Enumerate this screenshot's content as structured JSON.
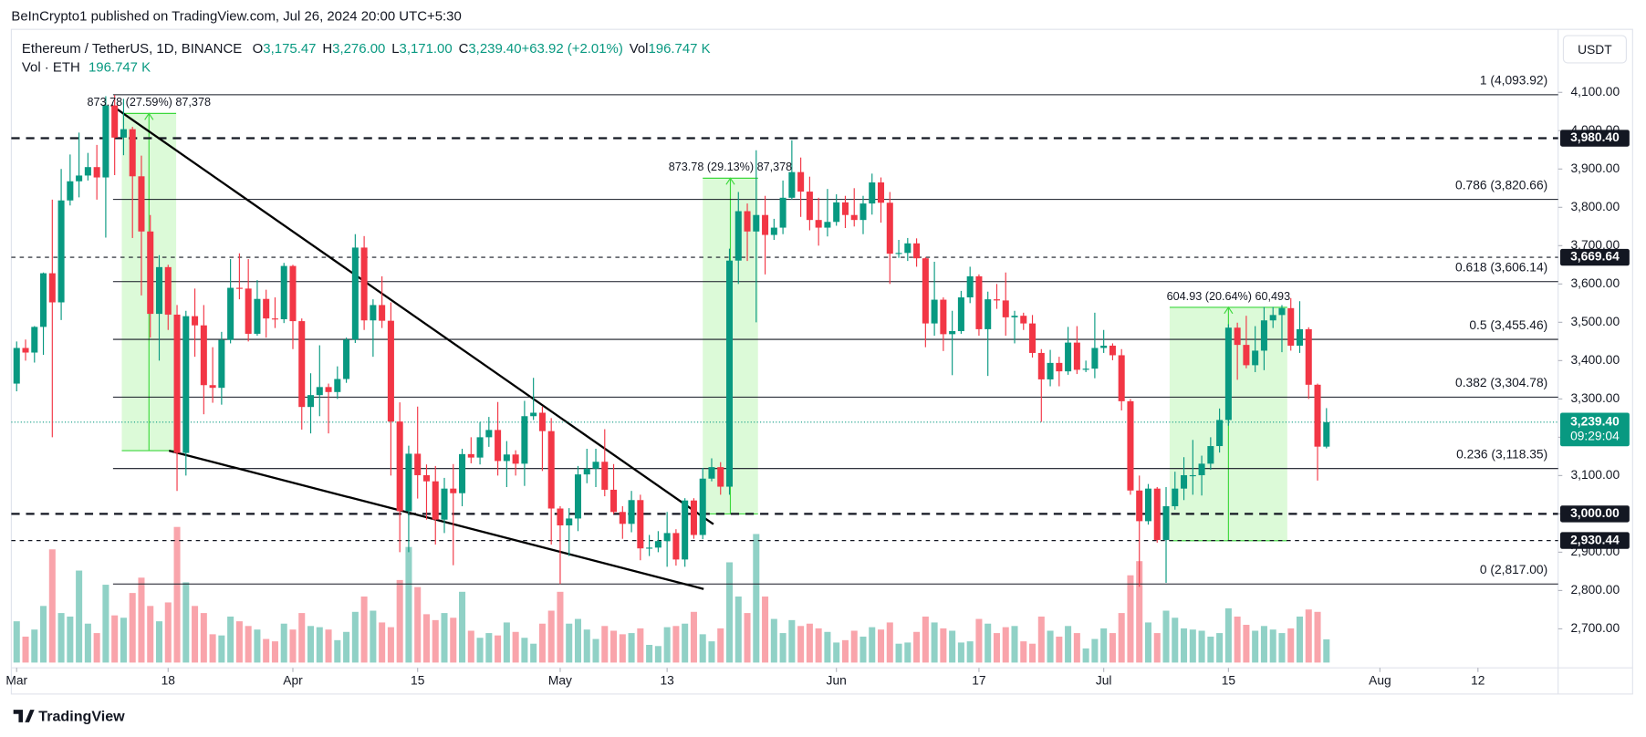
{
  "chart_data": {
    "type": "candlestick",
    "published": "BeInCrypto1 published on TradingView.com, Jul 26, 2024 20:00 UTC+5:30",
    "symbol": "Ethereum / TetherUS, 1D, BINANCE",
    "ohlc_legend": [
      {
        "k": "O",
        "v": "3,175.47"
      },
      {
        "k": "H",
        "v": "3,276.00"
      },
      {
        "k": "L",
        "v": "3,171.00"
      },
      {
        "k": "C",
        "v": "3,239.40"
      },
      {
        "k": "",
        "v": "+63.92 (+2.01%)"
      },
      {
        "k": "Vol",
        "v": "196.747 K"
      }
    ],
    "volume_legend": {
      "k": "Vol · ETH",
      "v": "196.747 K"
    },
    "currency": "USDT",
    "brand": "TradingView",
    "up_color": "#089981",
    "down_color": "#f23645",
    "xlim": [
      -0.6,
      173
    ],
    "ylim": [
      2612,
      4259
    ],
    "vlim": [
      0,
      1200
    ],
    "xticks": [
      {
        "value": 0,
        "label": "Mar"
      },
      {
        "value": 17,
        "label": "18"
      },
      {
        "value": 31,
        "label": "Apr"
      },
      {
        "value": 45,
        "label": "15"
      },
      {
        "value": 61,
        "label": "May"
      },
      {
        "value": 73,
        "label": "13"
      },
      {
        "value": 92,
        "label": "Jun"
      },
      {
        "value": 108,
        "label": "17"
      },
      {
        "value": 122,
        "label": "Jul"
      },
      {
        "value": 136,
        "label": "15"
      },
      {
        "value": 153,
        "label": "Aug"
      },
      {
        "value": 164,
        "label": "12"
      }
    ],
    "yticks": [
      {
        "value": 2700,
        "label": "2,700.00"
      },
      {
        "value": 2800,
        "label": "2,800.00"
      },
      {
        "value": 2900,
        "label": "2,900.00"
      },
      {
        "value": 3000,
        "label": "3,000.00"
      },
      {
        "value": 3100,
        "label": "3,100.00"
      },
      {
        "value": 3200,
        "label": "3,200.00"
      },
      {
        "value": 3300,
        "label": "3,300.00"
      },
      {
        "value": 3400,
        "label": "3,400.00"
      },
      {
        "value": 3500,
        "label": "3,500.00"
      },
      {
        "value": 3600,
        "label": "3,600.00"
      },
      {
        "value": 3700,
        "label": "3,700.00"
      },
      {
        "value": 3800,
        "label": "3,800.00"
      },
      {
        "value": 3900,
        "label": "3,900.00"
      },
      {
        "value": 4000,
        "label": "4,000.00"
      },
      {
        "value": 4100,
        "label": "4,100.00"
      }
    ],
    "candles": [
      [
        3340,
        3450,
        3320,
        3433
      ],
      [
        3433,
        3455,
        3400,
        3421
      ],
      [
        3421,
        3490,
        3395,
        3488
      ],
      [
        3488,
        3630,
        3415,
        3628
      ],
      [
        3628,
        3820,
        3200,
        3552
      ],
      [
        3552,
        3900,
        3506,
        3818
      ],
      [
        3818,
        3938,
        3805,
        3868
      ],
      [
        3868,
        3995,
        3826,
        3883
      ],
      [
        3883,
        3942,
        3870,
        3905
      ],
      [
        3905,
        3963,
        3820,
        3878
      ],
      [
        3878,
        4090,
        3721,
        4066
      ],
      [
        4066,
        4093,
        3884,
        3982
      ],
      [
        3982,
        4083,
        3936,
        4004
      ],
      [
        4004,
        4010,
        3720,
        3881
      ],
      [
        3881,
        3935,
        3570,
        3737
      ],
      [
        3737,
        3780,
        3460,
        3522
      ],
      [
        3522,
        3675,
        3400,
        3644
      ],
      [
        3644,
        3650,
        3480,
        3520
      ],
      [
        3520,
        3545,
        3060,
        3159
      ],
      [
        3159,
        3530,
        3100,
        3516
      ],
      [
        3516,
        3588,
        3410,
        3492
      ],
      [
        3492,
        3545,
        3260,
        3336
      ],
      [
        3336,
        3435,
        3290,
        3329
      ],
      [
        3329,
        3475,
        3285,
        3454
      ],
      [
        3454,
        3665,
        3445,
        3590
      ],
      [
        3590,
        3680,
        3560,
        3588
      ],
      [
        3588,
        3665,
        3450,
        3470
      ],
      [
        3470,
        3610,
        3465,
        3561
      ],
      [
        3561,
        3585,
        3460,
        3510
      ],
      [
        3510,
        3565,
        3485,
        3508
      ],
      [
        3508,
        3655,
        3498,
        3647
      ],
      [
        3647,
        3650,
        3430,
        3503
      ],
      [
        3503,
        3510,
        3220,
        3279
      ],
      [
        3279,
        3367,
        3210,
        3310
      ],
      [
        3310,
        3440,
        3255,
        3331
      ],
      [
        3331,
        3340,
        3210,
        3318
      ],
      [
        3318,
        3385,
        3300,
        3352
      ],
      [
        3352,
        3460,
        3342,
        3455
      ],
      [
        3455,
        3730,
        3446,
        3695
      ],
      [
        3695,
        3725,
        3480,
        3505
      ],
      [
        3505,
        3560,
        3410,
        3545
      ],
      [
        3545,
        3620,
        3485,
        3504
      ],
      [
        3504,
        3552,
        3100,
        3241
      ],
      [
        3241,
        3291,
        2900,
        3007
      ],
      [
        3007,
        3178,
        2900,
        3157
      ],
      [
        3157,
        3280,
        3040,
        3101
      ],
      [
        3101,
        3129,
        2985,
        3085
      ],
      [
        3085,
        3125,
        2920,
        2985
      ],
      [
        2985,
        3094,
        2950,
        3066
      ],
      [
        3066,
        3130,
        2866,
        3054
      ],
      [
        3054,
        3170,
        3020,
        3156
      ],
      [
        3156,
        3200,
        3132,
        3147
      ],
      [
        3147,
        3240,
        3129,
        3200
      ],
      [
        3200,
        3253,
        3175,
        3219
      ],
      [
        3219,
        3292,
        3100,
        3138
      ],
      [
        3138,
        3190,
        3070,
        3155
      ],
      [
        3155,
        3166,
        3100,
        3131
      ],
      [
        3131,
        3295,
        3073,
        3255
      ],
      [
        3255,
        3355,
        3245,
        3264
      ],
      [
        3264,
        3280,
        3112,
        3216
      ],
      [
        3216,
        3250,
        2920,
        3014
      ],
      [
        3014,
        3020,
        2817,
        2970
      ],
      [
        2970,
        3015,
        2890,
        2988
      ],
      [
        2988,
        3125,
        2955,
        3103
      ],
      [
        3103,
        3170,
        3080,
        3118
      ],
      [
        3118,
        3170,
        3070,
        3136
      ],
      [
        3136,
        3221,
        3046,
        3063
      ],
      [
        3063,
        3130,
        3000,
        3005
      ],
      [
        3005,
        3020,
        2935,
        2974
      ],
      [
        2974,
        3060,
        2952,
        3036
      ],
      [
        3036,
        3050,
        2879,
        2910
      ],
      [
        2910,
        2945,
        2890,
        2912
      ],
      [
        2912,
        2955,
        2900,
        2929
      ],
      [
        2929,
        3005,
        2862,
        2950
      ],
      [
        2950,
        2960,
        2865,
        2881
      ],
      [
        2881,
        3041,
        2862,
        3035
      ],
      [
        3035,
        3041,
        2935,
        2945
      ],
      [
        2945,
        3120,
        2934,
        3092
      ],
      [
        3092,
        3145,
        3085,
        3122
      ],
      [
        3122,
        3135,
        3050,
        3071
      ],
      [
        3071,
        3692,
        3050,
        3661
      ],
      [
        3661,
        3840,
        3600,
        3790
      ],
      [
        3790,
        3810,
        3660,
        3737
      ],
      [
        3737,
        3949,
        3500,
        3780
      ],
      [
        3780,
        3830,
        3625,
        3728
      ],
      [
        3728,
        3770,
        3715,
        3747
      ],
      [
        3747,
        3870,
        3730,
        3825
      ],
      [
        3825,
        3975,
        3820,
        3892
      ],
      [
        3892,
        3930,
        3775,
        3841
      ],
      [
        3841,
        3880,
        3740,
        3767
      ],
      [
        3767,
        3825,
        3700,
        3747
      ],
      [
        3747,
        3848,
        3724,
        3762
      ],
      [
        3762,
        3834,
        3752,
        3813
      ],
      [
        3813,
        3830,
        3746,
        3780
      ],
      [
        3780,
        3850,
        3750,
        3767
      ],
      [
        3767,
        3830,
        3730,
        3810
      ],
      [
        3810,
        3888,
        3781,
        3865
      ],
      [
        3865,
        3878,
        3760,
        3812
      ],
      [
        3812,
        3840,
        3600,
        3679
      ],
      [
        3679,
        3715,
        3668,
        3681
      ],
      [
        3681,
        3720,
        3660,
        3706
      ],
      [
        3706,
        3719,
        3645,
        3667
      ],
      [
        3667,
        3670,
        3435,
        3497
      ],
      [
        3497,
        3658,
        3465,
        3559
      ],
      [
        3559,
        3565,
        3425,
        3469
      ],
      [
        3469,
        3530,
        3362,
        3477
      ],
      [
        3477,
        3582,
        3470,
        3565
      ],
      [
        3565,
        3645,
        3550,
        3620
      ],
      [
        3620,
        3625,
        3465,
        3482
      ],
      [
        3482,
        3580,
        3360,
        3560
      ],
      [
        3560,
        3600,
        3535,
        3557
      ],
      [
        3557,
        3630,
        3465,
        3513
      ],
      [
        3513,
        3530,
        3445,
        3517
      ],
      [
        3517,
        3525,
        3480,
        3497
      ],
      [
        3497,
        3519,
        3408,
        3420
      ],
      [
        3420,
        3430,
        3240,
        3351
      ],
      [
        3351,
        3428,
        3333,
        3394
      ],
      [
        3394,
        3410,
        3333,
        3372
      ],
      [
        3372,
        3488,
        3363,
        3447
      ],
      [
        3447,
        3490,
        3365,
        3376
      ],
      [
        3376,
        3400,
        3370,
        3379
      ],
      [
        3379,
        3525,
        3354,
        3433
      ],
      [
        3433,
        3480,
        3420,
        3439
      ],
      [
        3439,
        3445,
        3401,
        3414
      ],
      [
        3414,
        3430,
        3270,
        3294
      ],
      [
        3294,
        3300,
        3050,
        3061
      ],
      [
        3061,
        3100,
        2810,
        2981
      ],
      [
        2981,
        3078,
        2972,
        3066
      ],
      [
        3066,
        3070,
        2925,
        2932
      ],
      [
        2932,
        3070,
        2820,
        3020
      ],
      [
        3020,
        3110,
        3011,
        3066
      ],
      [
        3066,
        3148,
        3036,
        3101
      ],
      [
        3101,
        3193,
        3050,
        3101
      ],
      [
        3101,
        3152,
        3048,
        3131
      ],
      [
        3131,
        3200,
        3115,
        3177
      ],
      [
        3177,
        3275,
        3160,
        3245
      ],
      [
        3245,
        3495,
        3230,
        3486
      ],
      [
        3486,
        3499,
        3350,
        3441
      ],
      [
        3441,
        3517,
        3380,
        3388
      ],
      [
        3388,
        3490,
        3370,
        3426
      ],
      [
        3426,
        3540,
        3375,
        3505
      ],
      [
        3505,
        3540,
        3485,
        3519
      ],
      [
        3519,
        3545,
        3422,
        3537
      ],
      [
        3537,
        3563,
        3426,
        3439
      ],
      [
        3439,
        3555,
        3420,
        3482
      ],
      [
        3482,
        3487,
        3300,
        3337
      ],
      [
        3337,
        3340,
        3087,
        3175.47
      ],
      [
        3175.47,
        3276,
        3171,
        3239.4
      ]
    ],
    "volumes": [
      350,
      220,
      280,
      480,
      960,
      420,
      390,
      780,
      330,
      250,
      660,
      400,
      380,
      590,
      720,
      480,
      350,
      510,
      1150,
      680,
      480,
      420,
      240,
      230,
      390,
      350,
      310,
      280,
      200,
      180,
      330,
      280,
      420,
      310,
      300,
      280,
      190,
      260,
      430,
      560,
      440,
      340,
      300,
      700,
      980,
      640,
      410,
      360,
      420,
      380,
      600,
      270,
      210,
      250,
      230,
      340,
      260,
      210,
      160,
      330,
      440,
      600,
      330,
      370,
      280,
      200,
      310,
      270,
      240,
      250,
      290,
      150,
      140,
      300,
      310,
      330,
      430,
      240,
      180,
      290,
      850,
      560,
      420,
      1090,
      560,
      370,
      250,
      360,
      310,
      330,
      290,
      260,
      170,
      190,
      270,
      220,
      300,
      280,
      340,
      160,
      170,
      260,
      390,
      340,
      290,
      270,
      170,
      180,
      370,
      330,
      250,
      300,
      310,
      180,
      160,
      390,
      270,
      220,
      310,
      250,
      120,
      200,
      290,
      250,
      420,
      740,
      860,
      340,
      250,
      440,
      380,
      290,
      280,
      270,
      220,
      250,
      460,
      390,
      320,
      270,
      310,
      280,
      250,
      290,
      390,
      450,
      430,
      196.747
    ],
    "fib_levels": [
      {
        "price": 4093.92,
        "label": "1 (4,093.92)"
      },
      {
        "price": 3820.66,
        "label": "0.786 (3,820.66)"
      },
      {
        "price": 3606.14,
        "label": "0.618 (3,606.14)"
      },
      {
        "price": 3455.46,
        "label": "0.5 (3,455.46)"
      },
      {
        "price": 3304.78,
        "label": "0.382 (3,304.78)"
      },
      {
        "price": 3118.35,
        "label": "0.236 (3,118.35)"
      },
      {
        "price": 2817,
        "label": "0 (2,817.00)"
      }
    ],
    "levels": [
      {
        "value": 3980.4,
        "label": "3,980.40",
        "style": "heavy"
      },
      {
        "value": 3669.64,
        "label": "3,669.64",
        "style": "light"
      },
      {
        "value": 3000,
        "label": "3,000.00",
        "style": "heavy"
      },
      {
        "value": 2930.44,
        "label": "2,930.44",
        "style": "light"
      }
    ],
    "last_price": {
      "value": 3239.4,
      "label": "3,239.40",
      "countdown": "09:29:04"
    },
    "ranges": [
      {
        "x": [
          11.8,
          17.9
        ],
        "y": [
          3165,
          4045
        ],
        "label": "873.78 (27.59%) 87,378"
      },
      {
        "x": [
          77,
          83.2
        ],
        "y": [
          3000,
          3876
        ],
        "label": "873.78 (29.13%) 87,378"
      },
      {
        "x": [
          129.4,
          142.6
        ],
        "y": [
          2930,
          3539
        ],
        "label": "604.93 (20.64%) 60,493"
      }
    ],
    "trendlines": [
      {
        "x": [
          10.6,
          78.2
        ],
        "y": [
          4067,
          2973
        ]
      },
      {
        "x": [
          17.1,
          77.1
        ],
        "y": [
          3165,
          2804
        ]
      }
    ]
  }
}
